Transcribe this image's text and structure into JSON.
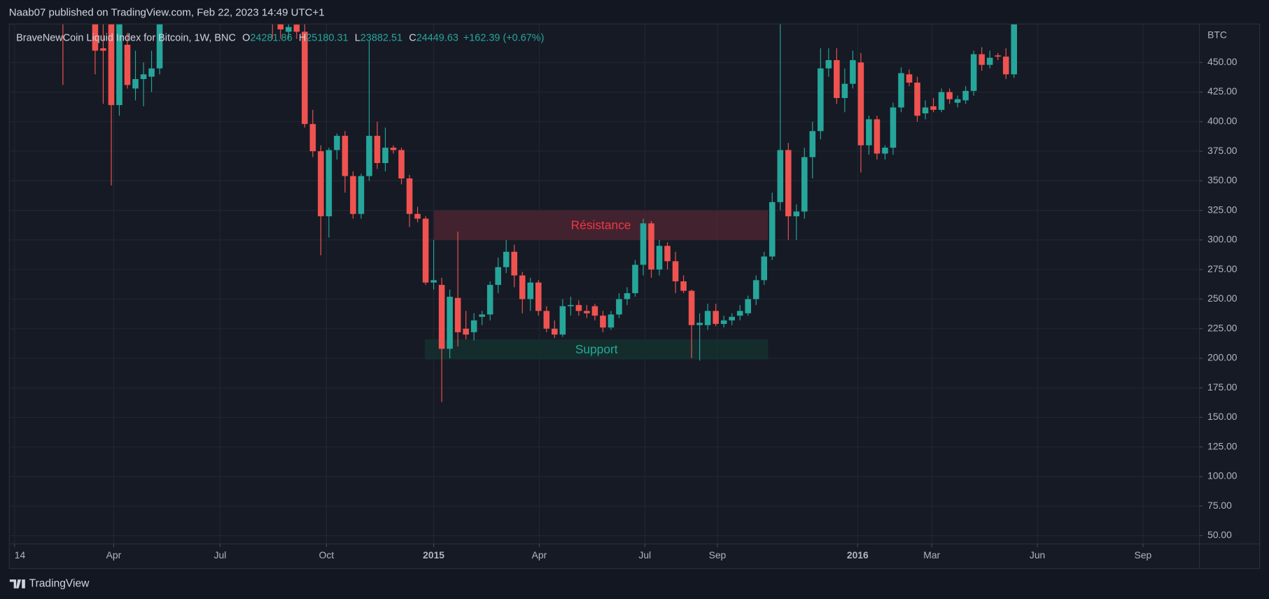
{
  "header": {
    "text": "Naab07 published on TradingView.com, Feb 22, 2023 14:49 UTC+1"
  },
  "footer": {
    "brand": "TradingView"
  },
  "chart_data": {
    "type": "candlestick",
    "symbol": "BraveNewCoin Liquid Index for Bitcoin, 1W, BNC",
    "ohlc_legend": [
      {
        "key": "O",
        "value": 24281.86
      },
      {
        "key": "H",
        "value": 25180.31
      },
      {
        "key": "L",
        "value": 23882.51
      },
      {
        "key": "C",
        "value": 24449.63
      }
    ],
    "change": "+162.39 (+0.67%)",
    "currency": "BTC",
    "up_color": "#26a69a",
    "down_color": "#ef5350",
    "grid": true,
    "xlim": [
      -0.6,
      147
    ],
    "ylim": [
      43.1,
      482.2
    ],
    "xticks": [
      {
        "value": 0,
        "label": "14"
      },
      {
        "value": 12.3,
        "label": "Apr"
      },
      {
        "value": 25.5,
        "label": "Jul"
      },
      {
        "value": 38.7,
        "label": "Oct"
      },
      {
        "value": 52,
        "label": "2015"
      },
      {
        "value": 65.1,
        "label": "Apr"
      },
      {
        "value": 78.2,
        "label": "Jul"
      },
      {
        "value": 87.2,
        "label": "Sep"
      },
      {
        "value": 104.6,
        "label": "2016"
      },
      {
        "value": 113.8,
        "label": "Mar"
      },
      {
        "value": 126.9,
        "label": "Jun"
      },
      {
        "value": 140,
        "label": "Sep"
      }
    ],
    "yticks": [
      {
        "value": 50,
        "label": "50.00"
      },
      {
        "value": 75,
        "label": "75.00"
      },
      {
        "value": 100,
        "label": "100.00"
      },
      {
        "value": 125,
        "label": "125.00"
      },
      {
        "value": 150,
        "label": "150.00"
      },
      {
        "value": 175,
        "label": "175.00"
      },
      {
        "value": 200,
        "label": "200.00"
      },
      {
        "value": 225,
        "label": "225.00"
      },
      {
        "value": 250,
        "label": "250.00"
      },
      {
        "value": 275,
        "label": "275.00"
      },
      {
        "value": 300,
        "label": "300.00"
      },
      {
        "value": 325,
        "label": "325.00"
      },
      {
        "value": 350,
        "label": "350.00"
      },
      {
        "value": 375,
        "label": "375.00"
      },
      {
        "value": 400,
        "label": "400.00"
      },
      {
        "value": 425,
        "label": "425.00"
      },
      {
        "value": 450,
        "label": "450.00"
      }
    ],
    "zones": [
      {
        "label": "Résistance",
        "x": [
          52,
          93.5
        ],
        "y": [
          300,
          325
        ],
        "fill": "#4a2431",
        "text_color": "#f23645"
      },
      {
        "label": "Support",
        "x": [
          50.9,
          93.5
        ],
        "y": [
          199,
          216
        ],
        "fill": "#15302f",
        "text_color": "#22ab94"
      }
    ],
    "x": [
      6,
      10,
      11,
      12,
      13,
      14,
      15,
      16,
      17,
      18,
      32,
      33,
      34,
      35,
      36,
      37,
      38,
      39,
      40,
      41,
      42,
      43,
      44,
      45,
      46,
      47,
      48,
      49,
      50,
      51,
      52,
      53,
      54,
      55,
      56,
      57,
      58,
      59,
      60,
      61,
      62,
      63,
      64,
      65,
      66,
      67,
      68,
      69,
      70,
      71,
      72,
      73,
      74,
      75,
      76,
      77,
      78,
      79,
      80,
      81,
      82,
      83,
      84,
      85,
      86,
      87,
      88,
      89,
      90,
      91,
      92,
      93,
      94,
      95,
      96,
      97,
      98,
      99,
      100,
      101,
      102,
      103,
      104,
      105,
      106,
      107,
      108,
      109,
      110,
      111,
      112,
      113,
      114,
      115,
      116,
      117,
      118,
      119,
      120,
      121,
      122,
      123,
      124
    ],
    "open": [
      495,
      490,
      462,
      490,
      414,
      465,
      428,
      436,
      438,
      445,
      492,
      488,
      476,
      482,
      476,
      398,
      375,
      320,
      376,
      388,
      354,
      322,
      354,
      388,
      365,
      378,
      376,
      352,
      322,
      318,
      264,
      262,
      208,
      251,
      225,
      222,
      235,
      237,
      262,
      277,
      290,
      270,
      250,
      264,
      240,
      225,
      220,
      244,
      245,
      240,
      244,
      236,
      226,
      237,
      250,
      255,
      279,
      314,
      275,
      295,
      282,
      265,
      257,
      228,
      228,
      240,
      229,
      232,
      236,
      238,
      250,
      266,
      286,
      332,
      376,
      320,
      324,
      370,
      392,
      445,
      452,
      420,
      432,
      450,
      380,
      402,
      373,
      378,
      412,
      440,
      433,
      407,
      413,
      410,
      425,
      416,
      418,
      426,
      457,
      448,
      456,
      455,
      440
    ],
    "high": [
      505,
      500,
      485,
      495,
      495,
      475,
      460,
      450,
      460,
      505,
      500,
      495,
      486,
      490,
      484,
      410,
      380,
      378,
      390,
      392,
      358,
      356,
      468,
      400,
      395,
      380,
      378,
      355,
      328,
      320,
      300,
      268,
      258,
      307,
      240,
      238,
      240,
      265,
      285,
      300,
      296,
      273,
      268,
      266,
      244,
      232,
      250,
      252,
      249,
      245,
      246,
      240,
      240,
      255,
      260,
      283,
      318,
      316,
      300,
      298,
      290,
      270,
      258,
      238,
      246,
      246,
      236,
      238,
      245,
      253,
      270,
      290,
      340,
      495,
      382,
      330,
      378,
      400,
      462,
      462,
      462,
      445,
      460,
      458,
      405,
      405,
      380,
      416,
      446,
      444,
      438,
      418,
      420,
      428,
      428,
      422,
      430,
      460,
      463,
      460,
      458,
      462,
      500
    ],
    "low": [
      431,
      440,
      415,
      346,
      405,
      428,
      418,
      413,
      425,
      440,
      470,
      470,
      470,
      470,
      395,
      370,
      287,
      302,
      368,
      340,
      318,
      318,
      350,
      360,
      358,
      373,
      347,
      311,
      315,
      262,
      258,
      163,
      200,
      210,
      216,
      215,
      228,
      232,
      255,
      272,
      260,
      238,
      240,
      236,
      222,
      217,
      218,
      236,
      236,
      234,
      232,
      222,
      224,
      234,
      245,
      252,
      270,
      268,
      270,
      275,
      255,
      255,
      200,
      198,
      224,
      227,
      226,
      228,
      232,
      236,
      245,
      262,
      283,
      325,
      300,
      300,
      318,
      352,
      385,
      438,
      415,
      408,
      428,
      357,
      372,
      368,
      368,
      372,
      408,
      430,
      400,
      402,
      408,
      408,
      415,
      412,
      415,
      422,
      443,
      445,
      452,
      436,
      437
    ],
    "close": [
      490,
      460,
      460,
      414,
      485,
      431,
      436,
      440,
      445,
      495,
      485,
      478,
      480,
      476,
      398,
      375,
      320,
      376,
      388,
      354,
      322,
      354,
      388,
      365,
      378,
      376,
      352,
      322,
      318,
      264,
      266,
      208,
      252,
      222,
      220,
      232,
      237,
      262,
      277,
      290,
      270,
      250,
      264,
      240,
      225,
      220,
      244,
      245,
      240,
      238,
      236,
      226,
      237,
      250,
      255,
      279,
      314,
      275,
      295,
      282,
      265,
      257,
      228,
      230,
      240,
      229,
      232,
      235,
      240,
      250,
      266,
      286,
      332,
      376,
      320,
      324,
      370,
      392,
      445,
      452,
      420,
      432,
      452,
      380,
      402,
      373,
      378,
      412,
      441,
      433,
      405,
      412,
      410,
      425,
      419,
      419,
      426,
      457,
      448,
      454,
      455,
      440,
      495
    ]
  }
}
